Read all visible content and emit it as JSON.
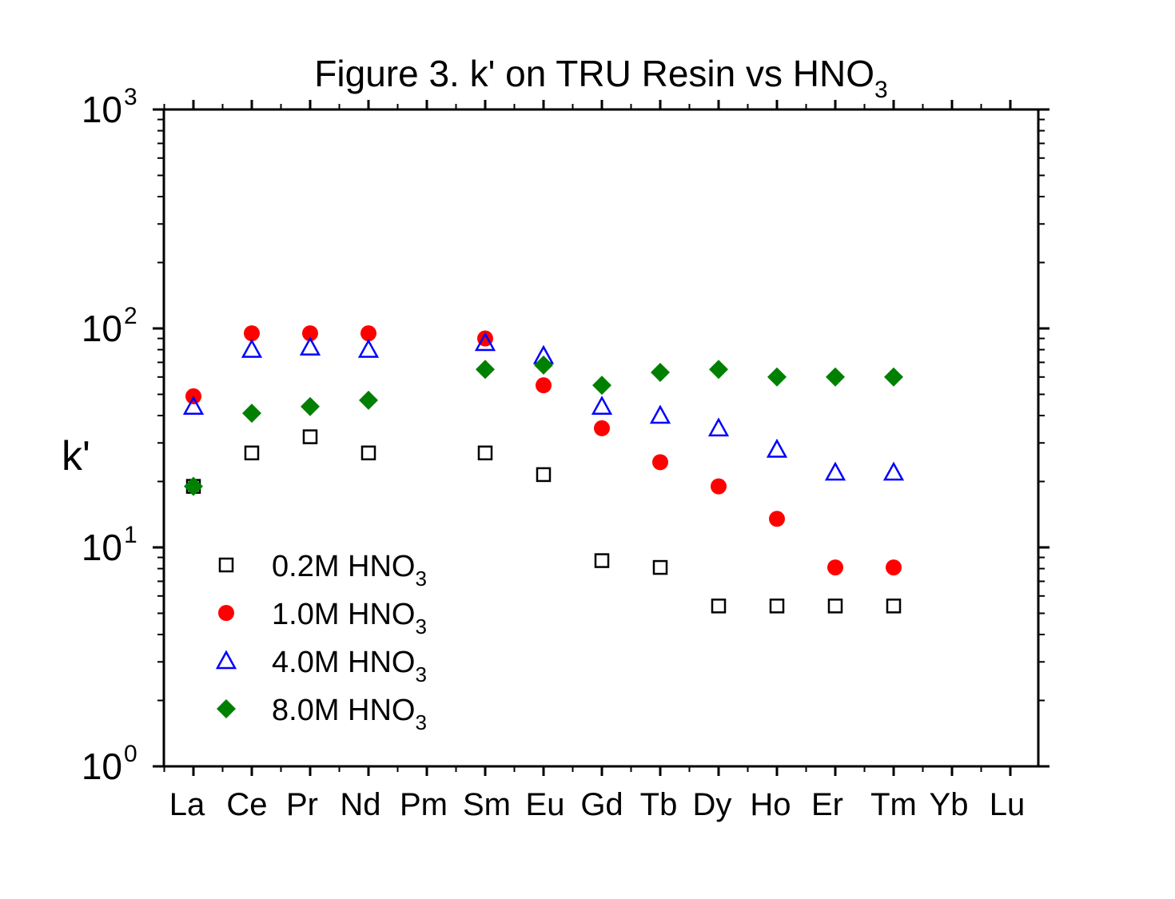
{
  "chart_data": {
    "type": "scatter",
    "title": "Figure 3. k' on TRU Resin vs HNO",
    "title_subscript": "3",
    "ylabel": "k'",
    "xlabel": "",
    "y_scale": "log",
    "ylim": [
      1,
      1000
    ],
    "y_ticks": [
      {
        "base": "10",
        "exp": "0"
      },
      {
        "base": "10",
        "exp": "1"
      },
      {
        "base": "10",
        "exp": "2"
      },
      {
        "base": "10",
        "exp": "3"
      }
    ],
    "categories": [
      "La",
      "Ce",
      "Pr",
      "Nd",
      "Pm",
      "Sm",
      "Eu",
      "Gd",
      "Tb",
      "Dy",
      "Ho",
      "Er",
      "Tm",
      "Yb",
      "Lu"
    ],
    "legend_position": "bottom-left (inside plot)",
    "series": [
      {
        "name": "0.2M HNO",
        "name_subscript": "3",
        "marker": "open-square",
        "color": "#000000",
        "values": [
          19,
          27,
          32,
          27,
          null,
          27,
          21.5,
          8.7,
          8.1,
          5.4,
          5.4,
          5.4,
          5.4,
          null,
          null
        ]
      },
      {
        "name": "1.0M HNO",
        "name_subscript": "3",
        "marker": "filled-circle",
        "color": "#ff0000",
        "values": [
          49,
          95,
          95,
          95,
          null,
          90,
          55,
          35,
          24.5,
          19,
          13.5,
          8.1,
          8.1,
          null,
          null
        ]
      },
      {
        "name": "4.0M HNO",
        "name_subscript": "3",
        "marker": "open-triangle",
        "color": "#0000ff",
        "values": [
          44,
          80,
          82,
          80,
          null,
          86,
          75,
          44,
          40,
          35,
          28,
          22,
          22,
          null,
          null
        ]
      },
      {
        "name": "8.0M HNO",
        "name_subscript": "3",
        "marker": "filled-diamond",
        "color": "#008000",
        "values": [
          19,
          41,
          44,
          47,
          null,
          65,
          68,
          55,
          63,
          65,
          60,
          60,
          60,
          null,
          null
        ]
      }
    ]
  }
}
